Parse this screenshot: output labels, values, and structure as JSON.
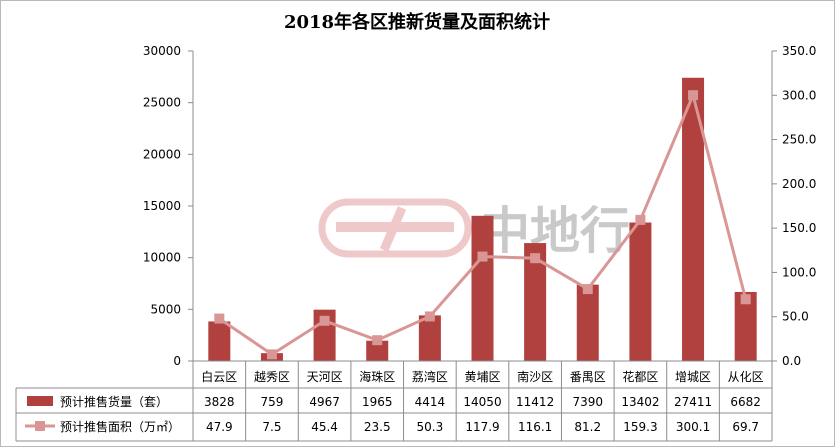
{
  "chart_data": {
    "type": "bar",
    "title": "2018年各区推新货量及面积统计",
    "categories": [
      "白云区",
      "越秀区",
      "天河区",
      "海珠区",
      "荔湾区",
      "黄埔区",
      "南沙区",
      "番禺区",
      "花都区",
      "增城区",
      "从化区"
    ],
    "series": [
      {
        "name": "预计推售货量（套）",
        "type": "bar",
        "axis": "left",
        "values": [
          3828,
          759,
          4967,
          1965,
          4414,
          14050,
          11412,
          7390,
          13402,
          27411,
          6682
        ],
        "labels": [
          "3828",
          "759",
          "4967",
          "1965",
          "4414",
          "14050",
          "11412",
          "7390",
          "13402",
          "27411",
          "6682"
        ],
        "color": "#b0413e"
      },
      {
        "name": "预计推售面积（万㎡）",
        "type": "line",
        "axis": "right",
        "values": [
          47.9,
          7.5,
          45.4,
          23.5,
          50.3,
          117.9,
          116.1,
          81.2,
          159.3,
          300.1,
          69.7
        ],
        "labels": [
          "47.9",
          "7.5",
          "45.4",
          "23.5",
          "50.3",
          "117.9",
          "116.1",
          "81.2",
          "159.3",
          "300.1",
          "69.7"
        ],
        "color": "#d99694"
      }
    ],
    "y_left": {
      "min": 0,
      "max": 30000,
      "ticks": [
        "0",
        "5000",
        "10000",
        "15000",
        "20000",
        "25000",
        "30000"
      ]
    },
    "y_right": {
      "min": 0,
      "max": 350,
      "ticks": [
        "0.0",
        "50.0",
        "100.0",
        "150.0",
        "200.0",
        "250.0",
        "300.0",
        "350.0"
      ]
    },
    "grid": false,
    "legend": "data-table-bottom",
    "watermark": "中地行"
  }
}
